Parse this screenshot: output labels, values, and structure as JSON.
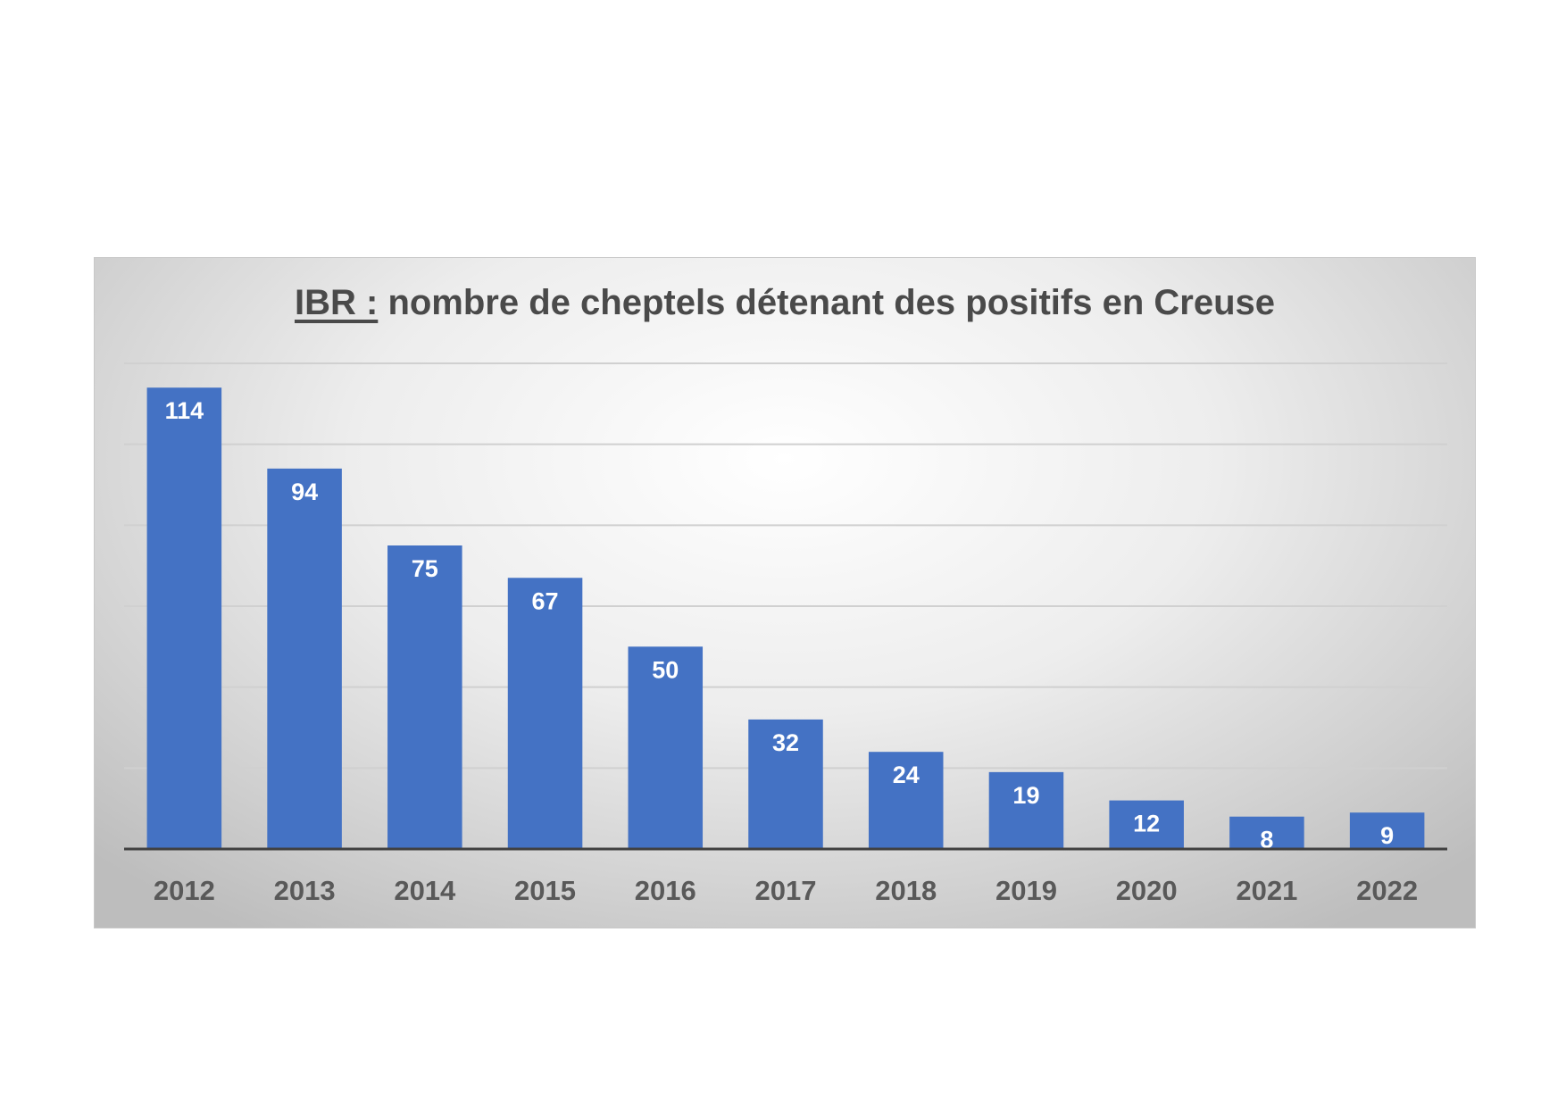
{
  "chart_data": {
    "type": "bar",
    "title_prefix": "IBR :",
    "title_rest": "nombre de cheptels détenant des positifs en Creuse",
    "categories": [
      "2012",
      "2013",
      "2014",
      "2015",
      "2016",
      "2017",
      "2018",
      "2019",
      "2020",
      "2021",
      "2022"
    ],
    "values": [
      114,
      94,
      75,
      67,
      50,
      32,
      24,
      19,
      12,
      8,
      9
    ],
    "ylim": [
      0,
      120
    ],
    "grid": true,
    "legend": "none",
    "colors": {
      "bar": "#4472c4",
      "label": "#ffffff",
      "tick": "#595959",
      "grid": "#d0d0d0",
      "axis": "#404040"
    }
  }
}
